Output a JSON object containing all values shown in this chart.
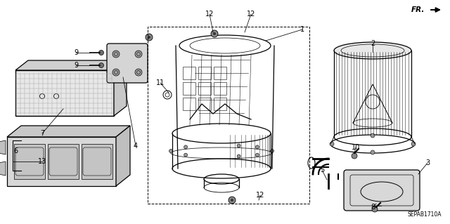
{
  "background_color": "#ffffff",
  "diagram_code": "SEPAB1710A",
  "line_color": "#000000",
  "text_color": "#000000",
  "labels": [
    [
      "1",
      430,
      42
    ],
    [
      "2",
      530,
      62
    ],
    [
      "3",
      608,
      232
    ],
    [
      "4",
      193,
      208
    ],
    [
      "5",
      458,
      242
    ],
    [
      "6",
      22,
      215
    ],
    [
      "7",
      60,
      190
    ],
    [
      "8",
      530,
      295
    ],
    [
      "9",
      108,
      75
    ],
    [
      "9",
      108,
      93
    ],
    [
      "10",
      506,
      210
    ],
    [
      "11",
      228,
      118
    ],
    [
      "12",
      298,
      20
    ],
    [
      "12",
      357,
      20
    ],
    [
      "12",
      370,
      278
    ],
    [
      "13",
      60,
      230
    ]
  ]
}
